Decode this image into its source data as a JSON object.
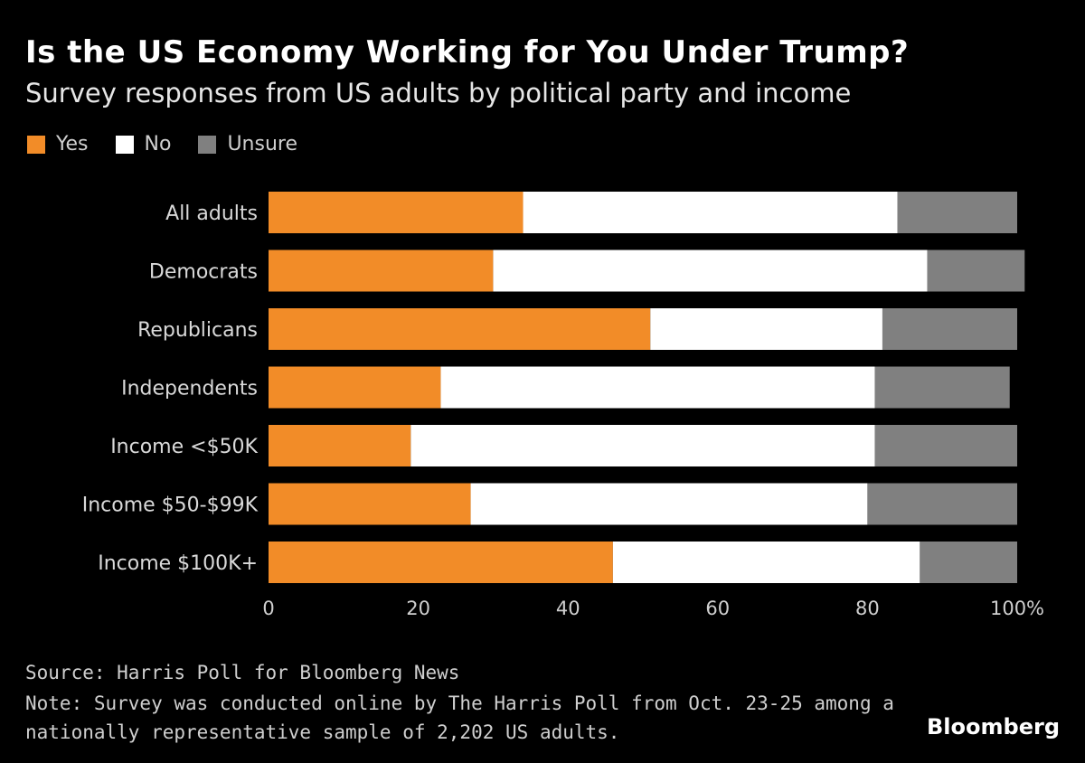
{
  "chart_data": {
    "type": "bar",
    "orientation": "horizontal",
    "stacked": true,
    "title": "Is the US Economy Working for You Under Trump?",
    "subtitle": "Survey responses from US adults by political party and income",
    "categories": [
      "All adults",
      "Democrats",
      "Republicans",
      "Independents",
      "Income <$50K",
      "Income $50-$99K",
      "Income $100K+"
    ],
    "series": [
      {
        "name": "Yes",
        "color": "#f28c28",
        "values": [
          34,
          30,
          51,
          23,
          19,
          27,
          46
        ]
      },
      {
        "name": "No",
        "color": "#ffffff",
        "values": [
          50,
          58,
          31,
          58,
          62,
          53,
          41
        ]
      },
      {
        "name": "Unsure",
        "color": "#808080",
        "values": [
          16,
          13,
          18,
          18,
          19,
          20,
          13
        ]
      }
    ],
    "xlim": [
      0,
      100
    ],
    "xticks": [
      "0",
      "20",
      "40",
      "60",
      "80",
      "100%"
    ],
    "grid": false,
    "legend": "top-left"
  },
  "source": "Source: Harris Poll for Bloomberg News",
  "note": "Note: Survey was conducted online by The Harris Poll from Oct. 23-25 among a nationally representative sample of 2,202 US adults.",
  "brand": "Bloomberg"
}
